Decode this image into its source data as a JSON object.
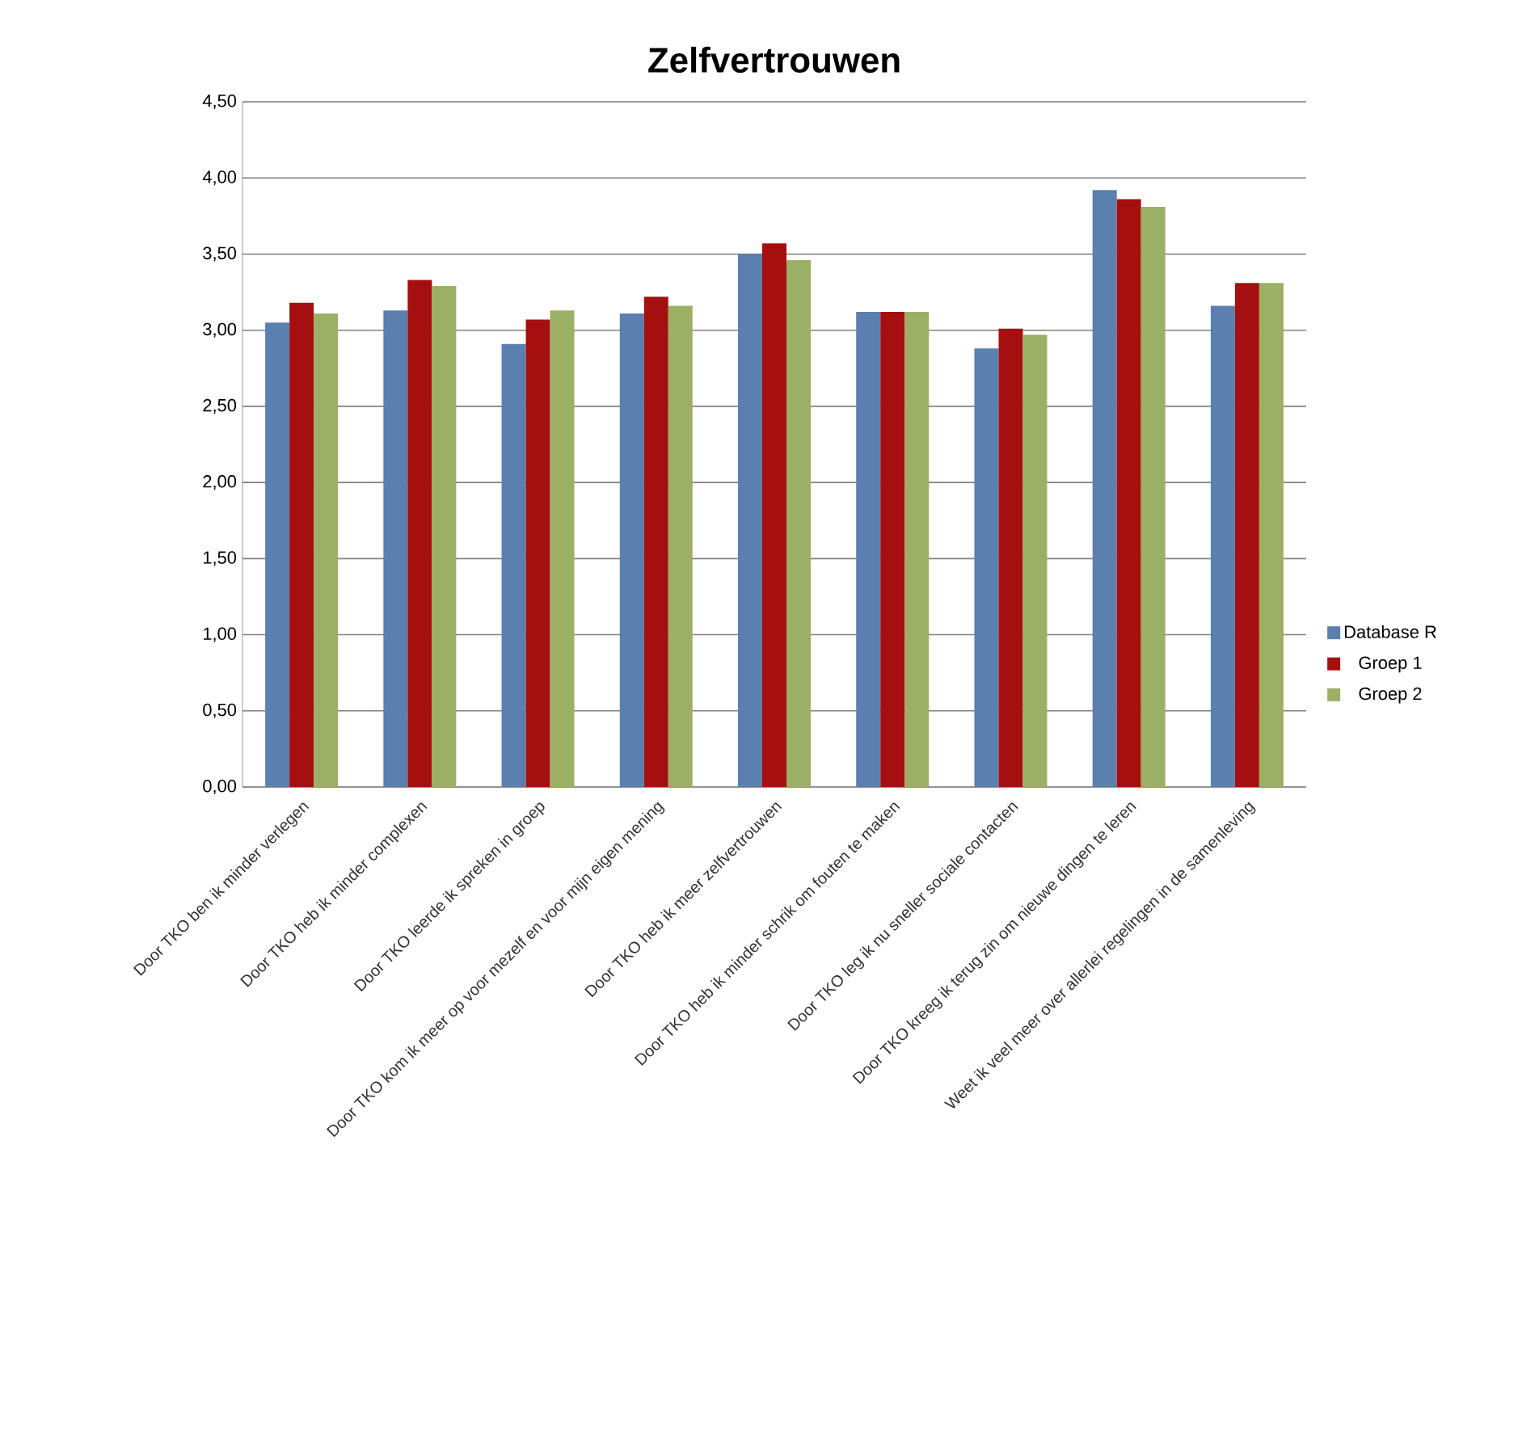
{
  "chart_data": {
    "type": "bar",
    "title": "Zelfvertrouwen",
    "categories": [
      "Door TKO ben ik minder verlegen",
      "Door TKO heb ik minder complexen",
      "Door TKO leerde ik spreken in groep",
      "Door TKO kom ik meer op voor mezelf en voor mijn eigen mening",
      "Door TKO heb ik meer zelfvertrouwen",
      "Door TKO heb ik minder schrik om fouten te maken",
      "Door TKO leg ik nu sneller sociale contacten",
      "Door TKO kreeg ik terug zin om nieuwe dingen te leren",
      "Weet ik veel meer over allerlei regelingen in de samenleving"
    ],
    "series": [
      {
        "name": "Database R",
        "color": "#5b7fae",
        "values": [
          3.05,
          3.13,
          2.91,
          3.11,
          3.5,
          3.12,
          2.88,
          3.92,
          3.16
        ]
      },
      {
        "name": "Groep 1",
        "color": "#a50f0f",
        "values": [
          3.18,
          3.33,
          3.07,
          3.22,
          3.57,
          3.12,
          3.01,
          3.86,
          3.31
        ]
      },
      {
        "name": "Groep 2",
        "color": "#9bb064",
        "values": [
          3.11,
          3.29,
          3.13,
          3.16,
          3.46,
          3.12,
          2.97,
          3.81,
          3.31
        ]
      }
    ],
    "ylim": [
      0,
      4.5
    ],
    "yticks": [
      {
        "value": 0,
        "label": "0,00"
      },
      {
        "value": 0.5,
        "label": "0,50"
      },
      {
        "value": 1,
        "label": "1,00"
      },
      {
        "value": 1.5,
        "label": "1,50"
      },
      {
        "value": 2,
        "label": "2,00"
      },
      {
        "value": 2.5,
        "label": "2,50"
      },
      {
        "value": 3,
        "label": "3,00"
      },
      {
        "value": 3.5,
        "label": "3,50"
      },
      {
        "value": 4,
        "label": "4,00"
      },
      {
        "value": 4.5,
        "label": "4,50"
      }
    ],
    "grid": "y",
    "legend": "right"
  }
}
